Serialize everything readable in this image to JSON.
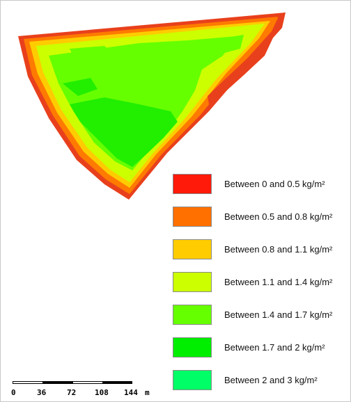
{
  "map": {
    "zone_colors": {
      "edge": "#e8401c",
      "rim": "#ff7a00",
      "mid": "#ffcc00",
      "light": "#ccff00",
      "main": "#66ff00",
      "dense": "#22ee00"
    }
  },
  "legend": {
    "items": [
      {
        "label": "Between 0 and 0.5 kg/m²",
        "color": "#ff1a0a"
      },
      {
        "label": "Between 0.5 and 0.8 kg/m²",
        "color": "#ff7000"
      },
      {
        "label": "Between 0.8 and 1.1 kg/m²",
        "color": "#ffcc00"
      },
      {
        "label": "Between 1.1 and 1.4 kg/m²",
        "color": "#ccff00"
      },
      {
        "label": "Between 1.4 and 1.7 kg/m²",
        "color": "#66ff00"
      },
      {
        "label": "Between 1.7 and 2 kg/m²",
        "color": "#00ee00"
      },
      {
        "label": "Between 2 and 3 kg/m²",
        "color": "#00ff66"
      }
    ]
  },
  "scale": {
    "ticks": [
      "0",
      "36",
      "72",
      "108",
      "144"
    ],
    "unit": "m"
  }
}
